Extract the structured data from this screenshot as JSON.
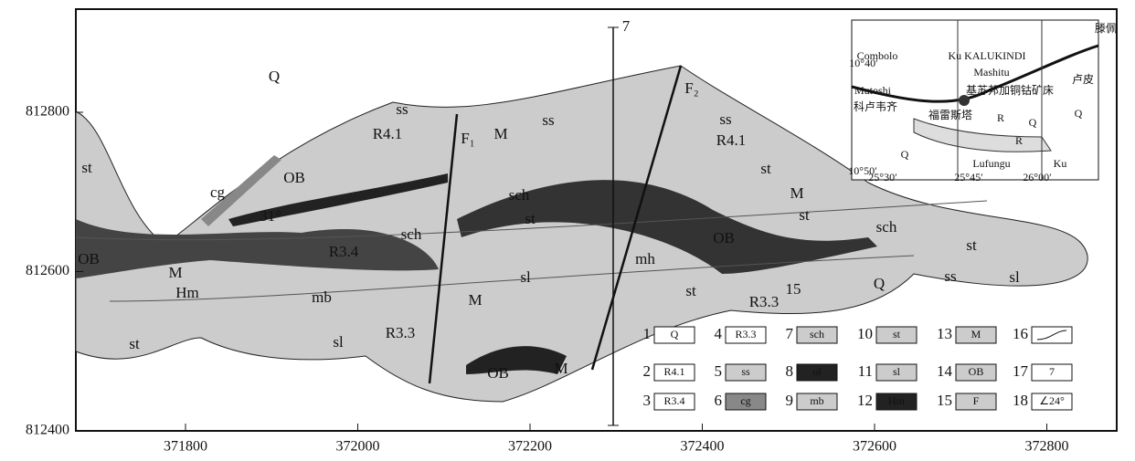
{
  "axes": {
    "xticks": [
      371800,
      372000,
      372200,
      372400,
      372600,
      372800
    ],
    "yticks": [
      812800,
      812600,
      812400
    ]
  },
  "map_labels": [
    "Q",
    "st",
    "cg",
    "OB",
    "ss",
    "R4.1",
    "31°",
    "sch",
    "R3.4",
    "OB",
    "M",
    "Hm",
    "mb",
    "sl",
    "R3.3",
    "st",
    "F₁",
    "M",
    "ss",
    "sch",
    "st",
    "sl",
    "M",
    "OB",
    "M",
    "mh",
    "F₂",
    "ss",
    "R4.1",
    "st",
    "M",
    "st",
    "sch",
    "OB",
    "st",
    "R3.3",
    "15",
    "Q",
    "st",
    "ss",
    "sl",
    "7"
  ],
  "inset_labels": [
    "Combolo",
    "Mutoshi",
    "科卢韦齐",
    "Ku KALUKINDI",
    "Mashitu",
    "滕佩",
    "卢皮",
    "基苏邦加铜钴矿床",
    "福雷斯塔",
    "Lufungu",
    "Ku",
    "Q",
    "Q",
    "R",
    "R",
    "Q",
    "10°40′",
    "10°50′",
    "25°30′",
    "25°45′",
    "26°00′"
  ],
  "legend": [
    {
      "number": "1",
      "label": "Q"
    },
    {
      "number": "2",
      "label": "R4.1"
    },
    {
      "number": "3",
      "label": "R3.4"
    },
    {
      "number": "4",
      "label": "R3.3"
    },
    {
      "number": "5",
      "label": "ss"
    },
    {
      "number": "6",
      "label": "cg"
    },
    {
      "number": "7",
      "label": "sch"
    },
    {
      "number": "8",
      "label": "ol"
    },
    {
      "number": "9",
      "label": "mb"
    },
    {
      "number": "10",
      "label": "st"
    },
    {
      "number": "11",
      "label": "sl"
    },
    {
      "number": "12",
      "label": "Hm"
    },
    {
      "number": "13",
      "label": "M"
    },
    {
      "number": "14",
      "label": "OB"
    },
    {
      "number": "15",
      "label": "F"
    },
    {
      "number": "16"
    },
    {
      "number": "17",
      "label": "7"
    },
    {
      "number": "18",
      "label": "∠24°"
    }
  ]
}
